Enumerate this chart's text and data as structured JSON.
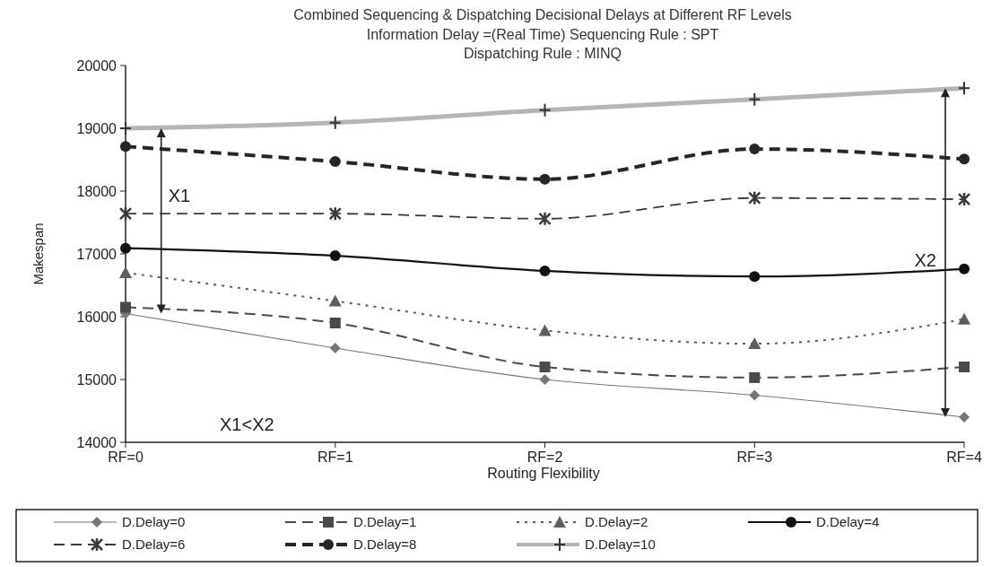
{
  "chart_data": {
    "type": "line",
    "title": "Combined Sequencing & Dispatching Decisional Delays at Different RF Levels",
    "subtitle": "Information Delay =(Real Time) Sequencing Rule : SPT\nDispatching Rule : MINQ",
    "xlabel": "Routing Flexibility",
    "ylabel": "Makespan",
    "categories": [
      "RF=0",
      "RF=1",
      "RF=2",
      "RF=3",
      "RF=4"
    ],
    "ylim": [
      14000,
      20000
    ],
    "yticks": [
      14000,
      15000,
      16000,
      17000,
      18000,
      19000,
      20000
    ],
    "grid": false,
    "legend": "bottom",
    "series": [
      {
        "name": "D.Delay=0",
        "color": "#777777",
        "marker": "diamond",
        "line_style": "solid",
        "values": [
          16050,
          15500,
          15000,
          14750,
          14400
        ]
      },
      {
        "name": "D.Delay=1",
        "color": "#4a4a4a",
        "marker": "square",
        "line_style": "dashed",
        "values": [
          16150,
          15900,
          15200,
          15030,
          15200
        ]
      },
      {
        "name": "D.Delay=2",
        "color": "#5e5e5e",
        "marker": "triangle",
        "line_style": "dotted",
        "values": [
          16700,
          16250,
          15780,
          15570,
          15960
        ]
      },
      {
        "name": "D.Delay=4",
        "color": "#111111",
        "marker": "circle",
        "line_style": "solid",
        "values": [
          17090,
          16970,
          16730,
          16640,
          16760
        ]
      },
      {
        "name": "D.Delay=6",
        "color": "#3a3a3a",
        "marker": "cross",
        "line_style": "dashed",
        "values": [
          17640,
          17640,
          17560,
          17890,
          17870
        ]
      },
      {
        "name": "D.Delay=8",
        "color": "#262626",
        "marker": "circle",
        "line_style": "dashed",
        "values": [
          18710,
          18470,
          18190,
          18670,
          18510
        ]
      },
      {
        "name": "D.Delay=10",
        "color": "#b5b5b5",
        "marker": "cross",
        "line_style": "solid",
        "values": [
          19000,
          19090,
          19290,
          19460,
          19640
        ]
      }
    ],
    "annotations": [
      "X1",
      "X2",
      "X1<X2"
    ]
  }
}
